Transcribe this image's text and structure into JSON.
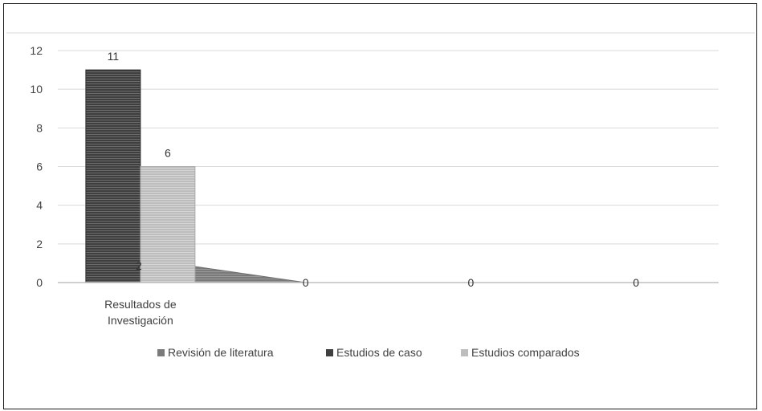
{
  "chart_data": {
    "type": "bar",
    "categories": [
      [
        "Resultados de",
        "Investigación"
      ],
      "",
      "",
      ""
    ],
    "series": [
      {
        "name": "Revisión de literatura",
        "values": [
          2,
          0,
          0,
          0
        ],
        "color": "#7a7a7a",
        "style": "area"
      },
      {
        "name": "Estudios de caso",
        "values": [
          11,
          0,
          0,
          0
        ],
        "color": "#3f3f3f",
        "style": "bar"
      },
      {
        "name": "Estudios comparados",
        "values": [
          6,
          0,
          0,
          0
        ],
        "color": "#bdbdbd",
        "style": "bar"
      }
    ],
    "ylim": [
      0,
      12
    ],
    "yticks": [
      0,
      2,
      4,
      6,
      8,
      10,
      12
    ],
    "grid": true,
    "legend": "bottom",
    "data_labels": [
      "2",
      "11",
      "6",
      "0",
      "0",
      "0"
    ],
    "colors": {
      "axis": "#bfbfbf",
      "grid": "#d9d9d9",
      "text": "#404040",
      "border": "#1a1a1a"
    }
  }
}
